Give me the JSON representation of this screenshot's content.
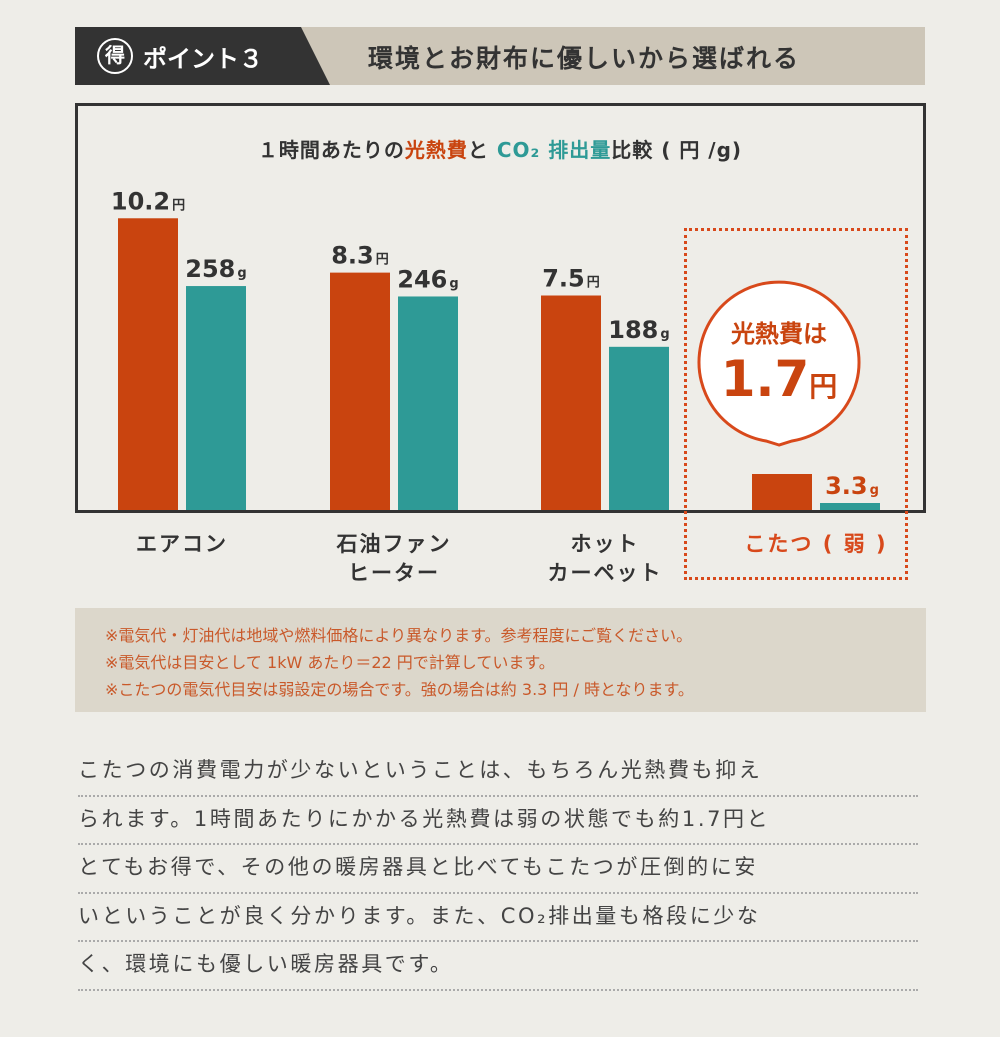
{
  "header": {
    "badge": "得",
    "point": "ポイント３",
    "title": "環境とお財布に優しいから選ばれる"
  },
  "chart_data": {
    "type": "bar",
    "title_parts": {
      "prefix": "１時間あたりの",
      "cost": "光熱費",
      "mid": "と ",
      "co2": "CO₂ 排出量",
      "suffix": "比較 ( 円 /g)"
    },
    "categories": [
      "エアコン",
      "石油ファン\nヒーター",
      "ホット\nカーペット",
      "こたつ ( 弱 )"
    ],
    "series": [
      {
        "unit": "円",
        "color": "#c9440f",
        "values": [
          10.2,
          8.3,
          7.5,
          1.7
        ]
      },
      {
        "unit": "g",
        "color": "#2e9a96",
        "values": [
          258,
          246,
          188,
          3.3
        ]
      }
    ],
    "highlight": {
      "category": "こたつ ( 弱 )",
      "callout_label": "光熱費は",
      "callout_value": "1.7",
      "callout_unit": "円"
    }
  },
  "notes": [
    "※電気代・灯油代は地域や燃料価格により異なります。参考程度にご覧ください。",
    "※電気代は目安として 1kW あたり＝22 円で計算しています。",
    "※こたつの電気代目安は弱設定の場合です。強の場合は約 3.3 円 / 時となります。"
  ],
  "paragraph": [
    "こたつの消費電力が少ないということは、もちろん光熱費も抑え",
    "られます。1時間あたりにかかる光熱費は弱の状態でも約1.7円と",
    "とてもお得で、その他の暖房器具と比べてもこたつが圧倒的に安",
    "いということが良く分かります。また、CO₂排出量も格段に少な",
    "く、環境にも優しい暖房器具です。"
  ]
}
